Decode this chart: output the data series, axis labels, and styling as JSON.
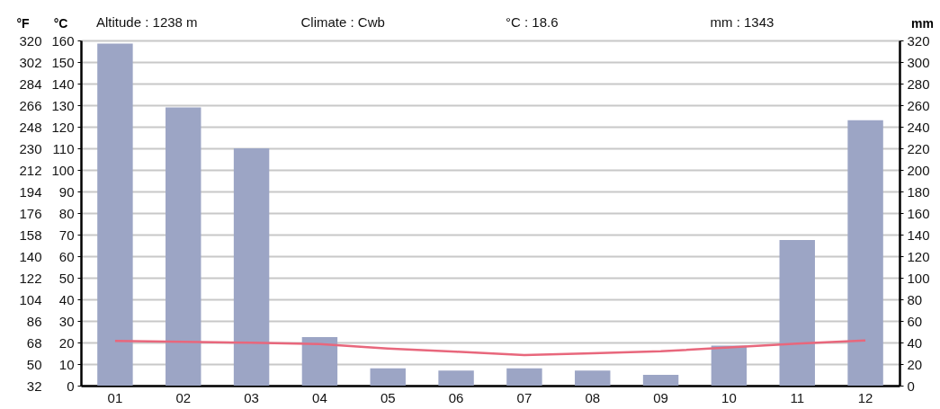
{
  "chart_data": {
    "type": "bar",
    "categories": [
      "01",
      "02",
      "03",
      "04",
      "05",
      "06",
      "07",
      "08",
      "09",
      "10",
      "11",
      "12"
    ],
    "series": [
      {
        "axis": "y2",
        "color": "#9ca5c5",
        "values": [
          317,
          258,
          220,
          45,
          16,
          14,
          16,
          14,
          10,
          37,
          135,
          246
        ]
      },
      {
        "type": "line",
        "color": "#e8677c",
        "values": [
          20.7,
          20.3,
          19.9,
          19.3,
          17.2,
          15.7,
          14.2,
          15.0,
          15.9,
          17.7,
          19.5,
          20.9
        ]
      }
    ],
    "ylabel": "°C",
    "y2label": "mm",
    "y3label": "°F",
    "ylim": [
      0,
      160
    ],
    "yticks": [
      0,
      10,
      20,
      30,
      40,
      50,
      60,
      70,
      80,
      90,
      100,
      110,
      120,
      130,
      140,
      150,
      160
    ],
    "y2lim": [
      0,
      320
    ],
    "y2ticks": [
      0,
      20,
      40,
      60,
      80,
      100,
      120,
      140,
      160,
      180,
      200,
      220,
      240,
      260,
      280,
      300,
      320
    ],
    "y3lim": [
      32,
      320
    ],
    "y3ticks": [
      32,
      50,
      68,
      86,
      104,
      122,
      140,
      158,
      176,
      194,
      212,
      230,
      248,
      266,
      284,
      302,
      320
    ],
    "grid": "y",
    "annotations": [
      "Altitude : 1238 m",
      "Climate : Cwb",
      "°C : 18.6",
      "mm : 1343"
    ]
  }
}
